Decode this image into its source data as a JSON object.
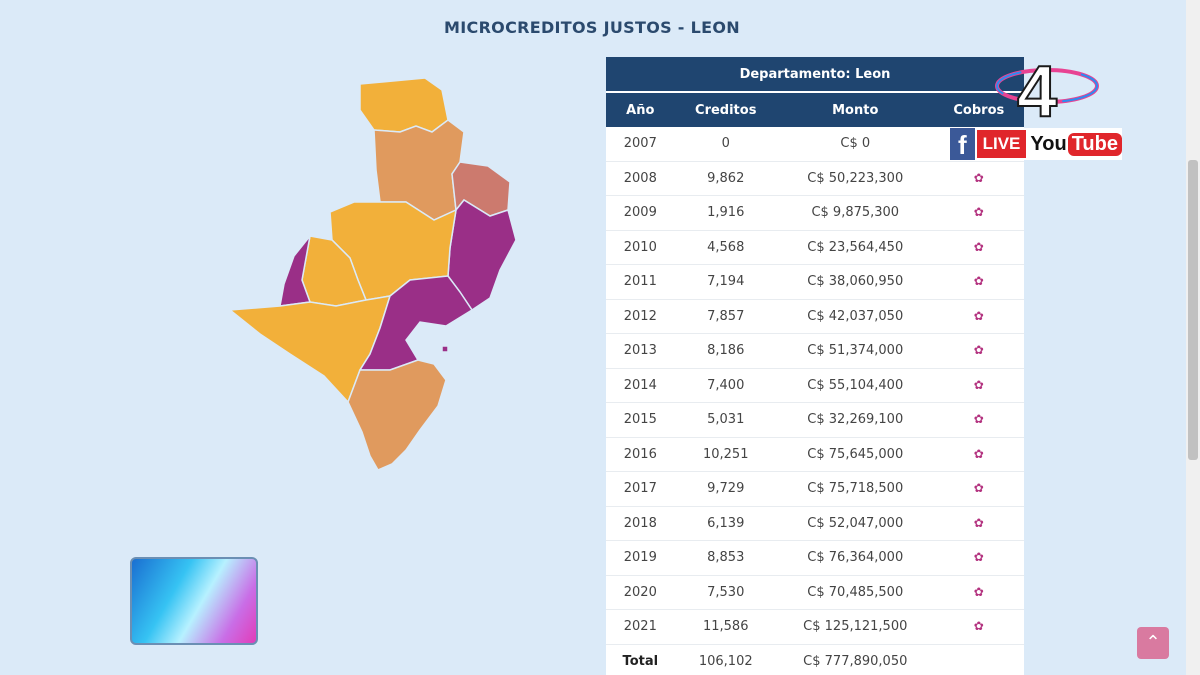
{
  "page": {
    "title": "MICROCREDITOS JUSTOS - LEON"
  },
  "table": {
    "department_header": "Departamento: Leon",
    "columns": [
      "Año",
      "Creditos",
      "Monto",
      "Cobros"
    ],
    "rows": [
      {
        "year": "2007",
        "creditos": "0",
        "monto": "C$ 0"
      },
      {
        "year": "2008",
        "creditos": "9,862",
        "monto": "C$ 50,223,300"
      },
      {
        "year": "2009",
        "creditos": "1,916",
        "monto": "C$ 9,875,300"
      },
      {
        "year": "2010",
        "creditos": "4,568",
        "monto": "C$ 23,564,450"
      },
      {
        "year": "2011",
        "creditos": "7,194",
        "monto": "C$ 38,060,950"
      },
      {
        "year": "2012",
        "creditos": "7,857",
        "monto": "C$ 42,037,050"
      },
      {
        "year": "2013",
        "creditos": "8,186",
        "monto": "C$ 51,374,000"
      },
      {
        "year": "2014",
        "creditos": "7,400",
        "monto": "C$ 55,104,400"
      },
      {
        "year": "2015",
        "creditos": "5,031",
        "monto": "C$ 32,269,100"
      },
      {
        "year": "2016",
        "creditos": "10,251",
        "monto": "C$ 75,645,000"
      },
      {
        "year": "2017",
        "creditos": "9,729",
        "monto": "C$ 75,718,500"
      },
      {
        "year": "2018",
        "creditos": "6,139",
        "monto": "C$ 52,047,000"
      },
      {
        "year": "2019",
        "creditos": "8,853",
        "monto": "C$ 76,364,000"
      },
      {
        "year": "2020",
        "creditos": "7,530",
        "monto": "C$ 70,485,500"
      },
      {
        "year": "2021",
        "creditos": "11,586",
        "monto": "C$ 125,121,500"
      }
    ],
    "total": {
      "label": "Total",
      "creditos": "106,102",
      "monto": "C$ 777,890,050"
    }
  },
  "overlay": {
    "logo_text": "4",
    "facebook": "f",
    "live": "LIVE",
    "youtube_you": "You",
    "youtube_tube": "Tube"
  },
  "icons": {
    "gear": "gear-icon",
    "scroll_top": "chevron-up-icon"
  },
  "colors": {
    "header_bg": "#1f4570",
    "map_orange": "#f2b03a",
    "map_tan": "#e09a5e",
    "map_purple": "#9a2f87",
    "map_rose": "#cc7a6e",
    "accent_gear": "#b3327f"
  }
}
